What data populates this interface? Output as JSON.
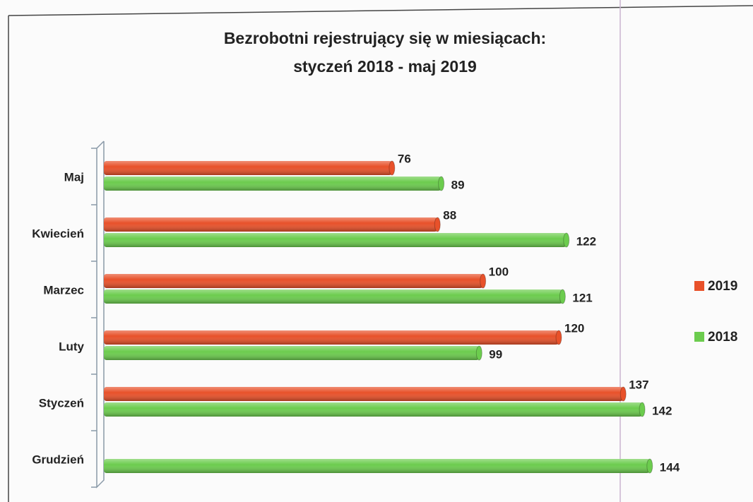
{
  "chart_data": {
    "type": "hbar",
    "title": "Bezrobotni rejestrujący się w miesiącach:",
    "subtitle": "styczeń 2018 - maj 2019",
    "categories": [
      "Maj",
      "Kwiecień",
      "Marzec",
      "Luty",
      "Styczeń",
      "Grudzień"
    ],
    "series": [
      {
        "name": "2019",
        "color": "#e8512a",
        "values": [
          76,
          88,
          100,
          120,
          137,
          null
        ]
      },
      {
        "name": "2018",
        "color": "#6ccc4e",
        "values": [
          89,
          122,
          121,
          99,
          142,
          144
        ]
      }
    ],
    "xlim": [
      0,
      150
    ],
    "legend": "right"
  }
}
